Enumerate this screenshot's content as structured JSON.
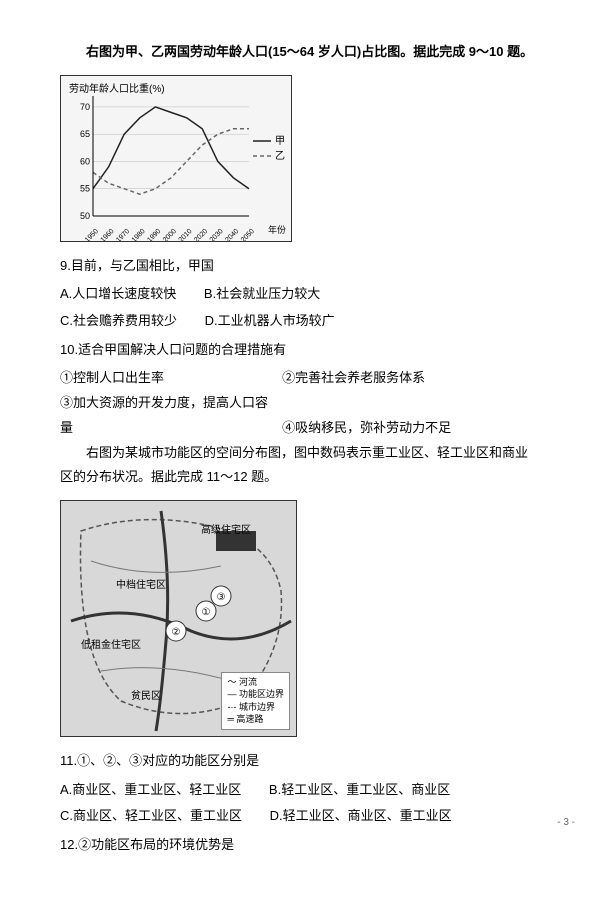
{
  "intro1": "右图为甲、乙两国劳动年龄人口(15～64 岁人口)占比图。据此完成 9～10 题。",
  "chart1": {
    "title": "劳动年龄人口比重(%)",
    "xlabels": [
      "1950",
      "1960",
      "1970",
      "1980",
      "1990",
      "2000",
      "2010",
      "2020",
      "2030",
      "2040",
      "2050"
    ],
    "xlabel_end": "年份",
    "ylabels": [
      "50",
      "55",
      "60",
      "65",
      "70"
    ],
    "series": [
      {
        "name": "甲",
        "color": "#222",
        "dash": "",
        "pts": [
          [
            0,
            55
          ],
          [
            1,
            59
          ],
          [
            2,
            65
          ],
          [
            3,
            68
          ],
          [
            4,
            70
          ],
          [
            5,
            69
          ],
          [
            6,
            68
          ],
          [
            7,
            66
          ],
          [
            8,
            60
          ],
          [
            9,
            57
          ],
          [
            10,
            55
          ]
        ]
      },
      {
        "name": "乙",
        "color": "#666",
        "dash": "4 3",
        "pts": [
          [
            0,
            58
          ],
          [
            1,
            56
          ],
          [
            2,
            55
          ],
          [
            3,
            54
          ],
          [
            4,
            55
          ],
          [
            5,
            57
          ],
          [
            6,
            60
          ],
          [
            7,
            63
          ],
          [
            8,
            65
          ],
          [
            9,
            66
          ],
          [
            10,
            66
          ]
        ]
      }
    ],
    "ylim": [
      50,
      72
    ],
    "xlim": [
      0,
      10
    ]
  },
  "q9": {
    "stem": "9.目前，与乙国相比，甲国",
    "a": "A.人口增长速度较快",
    "b": "B.社会就业压力较大",
    "c": "C.社会赡养费用较少",
    "d": "D.工业机器人市场较广"
  },
  "q10": {
    "stem": "10.适合甲国解决人口问题的合理措施有",
    "o1": "①控制人口出生率",
    "o2": "②完善社会养老服务体系",
    "o3": "③加大资源的开发力度，提高人口容量",
    "o4": "④吸纳移民，弥补劳动力不足"
  },
  "intro2": "右图为某城市功能区的空间分布图，图中数码表示重工业区、轻工业区和商业区的分布状况。据此完成 11～12 题。",
  "map": {
    "labels": {
      "gaoji": "高级住宅区",
      "zhongdi": "中档住宅区",
      "dizu": "低租金住宅区",
      "pin": "贫民区"
    },
    "legend": {
      "river": "河流",
      "zone": "功能区边界",
      "city": "城市边界",
      "hwy": "高速路"
    }
  },
  "q11": {
    "stem": "11.①、②、③对应的功能区分别是",
    "a": "A.商业区、重工业区、轻工业区",
    "b": "B.轻工业区、重工业区、商业区",
    "c": "C.商业区、轻工业区、重工业区",
    "d": "D.轻工业区、商业区、重工业区"
  },
  "q12": {
    "stem": "12.②功能区布局的环境优势是"
  },
  "page": "- 3 -"
}
